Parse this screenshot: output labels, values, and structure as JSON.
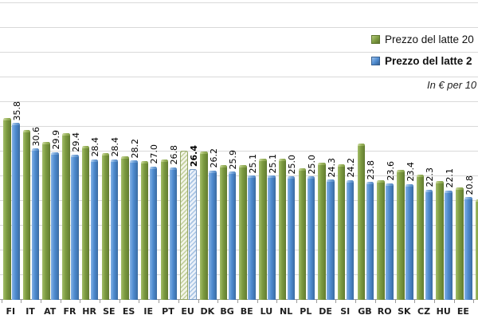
{
  "legend": {
    "items": [
      {
        "label": "Prezzo del latte 20",
        "series": "green",
        "bold": false
      },
      {
        "label": "Prezzo del latte 2",
        "series": "blue",
        "bold": true
      }
    ]
  },
  "note": "In € per 10",
  "colors": {
    "green_bar": "#7c9a40",
    "blue_bar": "#4e8bd0",
    "gridline": "#d9d9d9",
    "axis": "#9b9b9b"
  },
  "chart_data": {
    "type": "bar",
    "title": "",
    "note": "In € per 10",
    "categories": [
      "FI",
      "IT",
      "AT",
      "FR",
      "HR",
      "SE",
      "ES",
      "IE",
      "PT",
      "EU",
      "DK",
      "BG",
      "BE",
      "LU",
      "NL",
      "PL",
      "DE",
      "SI",
      "GB",
      "RO",
      "SK",
      "CZ",
      "HU",
      "EE",
      ""
    ],
    "series": [
      {
        "name": "Prezzo del latte 20",
        "color": "#7c9a40",
        "labels_shown": false,
        "values": [
          36.7,
          34.3,
          32.0,
          33.7,
          31.1,
          29.7,
          29.1,
          28.1,
          28.4,
          30.2,
          30.0,
          27.3,
          27.2,
          28.5,
          28.5,
          26.6,
          27.7,
          27.4,
          31.6,
          24.2,
          26.3,
          25.3,
          24.1,
          22.7,
          20.3
        ]
      },
      {
        "name": "Prezzo del latte 2",
        "color": "#4e8bd0",
        "labels_shown": true,
        "values": [
          35.8,
          30.6,
          29.9,
          29.4,
          28.4,
          28.4,
          28.2,
          27.0,
          26.8,
          26.4,
          26.2,
          25.9,
          25.1,
          25.1,
          25.0,
          25.0,
          24.3,
          24.2,
          23.8,
          23.6,
          23.4,
          22.3,
          22.1,
          20.8,
          null
        ]
      }
    ],
    "highlight_category": "EU",
    "highlight_index": 9,
    "ylim": [
      0,
      60
    ],
    "gridline_step": 5,
    "grid": true,
    "legend_position": "top-right",
    "value_label_rotation": -90
  }
}
